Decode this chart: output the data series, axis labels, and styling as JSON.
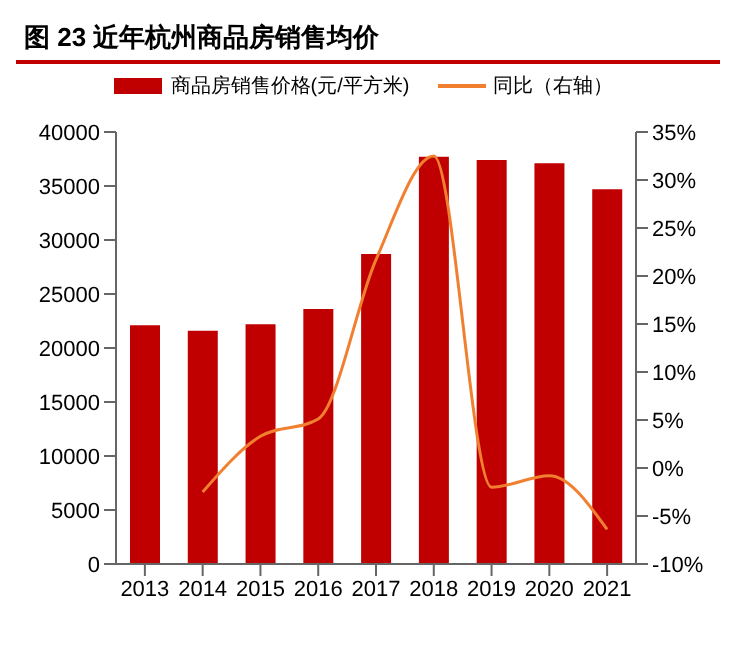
{
  "chart_data": {
    "type": "bar",
    "title": "图 23 近年杭州商品房销售均价",
    "categories": [
      "2013",
      "2014",
      "2015",
      "2016",
      "2017",
      "2018",
      "2019",
      "2020",
      "2021"
    ],
    "series": [
      {
        "name": "商品房销售价格(元/平方米)",
        "type": "bar",
        "color": "#c00000",
        "values": [
          22100,
          21600,
          22200,
          23600,
          28700,
          37700,
          37400,
          37100,
          34700
        ]
      },
      {
        "name": "同比（右轴）",
        "type": "line",
        "axis": "y2",
        "color": "#f08030",
        "values": [
          null,
          -2.5,
          3.3,
          5.1,
          21.7,
          32.5,
          -2,
          -0.8,
          -6.4
        ]
      }
    ],
    "ylim": [
      0,
      40000
    ],
    "yticks": [
      0,
      5000,
      10000,
      15000,
      20000,
      25000,
      30000,
      35000,
      40000
    ],
    "y2lim": [
      -10,
      35
    ],
    "y2ticks": [
      {
        "value": -10,
        "label": "-10%"
      },
      {
        "value": -5,
        "label": "-5%"
      },
      {
        "value": 0,
        "label": "0%"
      },
      {
        "value": 5,
        "label": "5%"
      },
      {
        "value": 10,
        "label": "10%"
      },
      {
        "value": 15,
        "label": "15%"
      },
      {
        "value": 20,
        "label": "20%"
      },
      {
        "value": 25,
        "label": "25%"
      },
      {
        "value": 30,
        "label": "30%"
      },
      {
        "value": 35,
        "label": "35%"
      }
    ],
    "legend": "top",
    "grid": false,
    "marker": "none",
    "line_style": "solid"
  }
}
